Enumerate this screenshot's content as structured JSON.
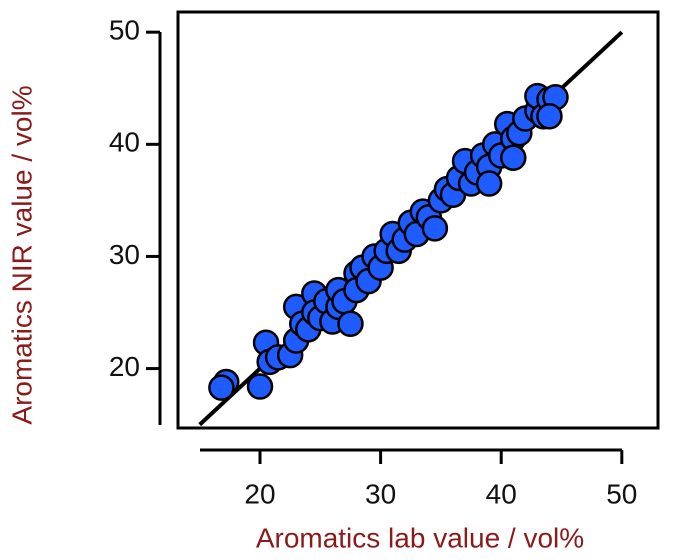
{
  "chart_data": {
    "type": "scatter",
    "xlabel": "Aromatics lab value / vol%",
    "ylabel": "Aromatics NIR value / vol%",
    "x": [
      17.2,
      16.8,
      20,
      20.5,
      20.8,
      21.5,
      22.5,
      23,
      23,
      23.5,
      24,
      24.5,
      24.5,
      25,
      25.5,
      26,
      26.5,
      26.5,
      27,
      27.5,
      28,
      28,
      28.5,
      29,
      29.5,
      30,
      30.5,
      31,
      31.5,
      32,
      32.5,
      33,
      33.5,
      34,
      34.5,
      35,
      35.5,
      36,
      36.5,
      37,
      37.5,
      38,
      38.5,
      39,
      39,
      39.5,
      40,
      40.5,
      41,
      41,
      41.5,
      42,
      43,
      43,
      43.5,
      44,
      44.5,
      44
    ],
    "values": [
      18.8,
      18.3,
      18.4,
      22.3,
      20.6,
      21.0,
      21.2,
      22.5,
      25.5,
      24,
      23.5,
      26.7,
      25,
      24.5,
      26,
      24.2,
      25.5,
      27,
      26,
      24,
      28.5,
      27,
      29,
      27.8,
      30,
      29,
      30.5,
      32,
      30.5,
      31.5,
      33,
      32,
      34,
      33.5,
      32.5,
      35,
      36,
      35.5,
      37,
      38.5,
      36.5,
      37.5,
      39,
      38,
      36.5,
      40,
      39,
      41.8,
      40.5,
      38.8,
      41,
      42.3,
      43,
      44.3,
      42.5,
      44,
      44.2,
      42.5
    ],
    "color": "#1f5cff",
    "reference_line": {
      "x": [
        15,
        50
      ],
      "y": [
        15,
        50
      ],
      "color": "#000000"
    },
    "xlim": [
      13.2,
      53
    ],
    "ylim": [
      14.7,
      51.8
    ],
    "xticks": [
      20,
      30,
      40,
      50
    ],
    "yticks": [
      20,
      30,
      40,
      50
    ]
  }
}
